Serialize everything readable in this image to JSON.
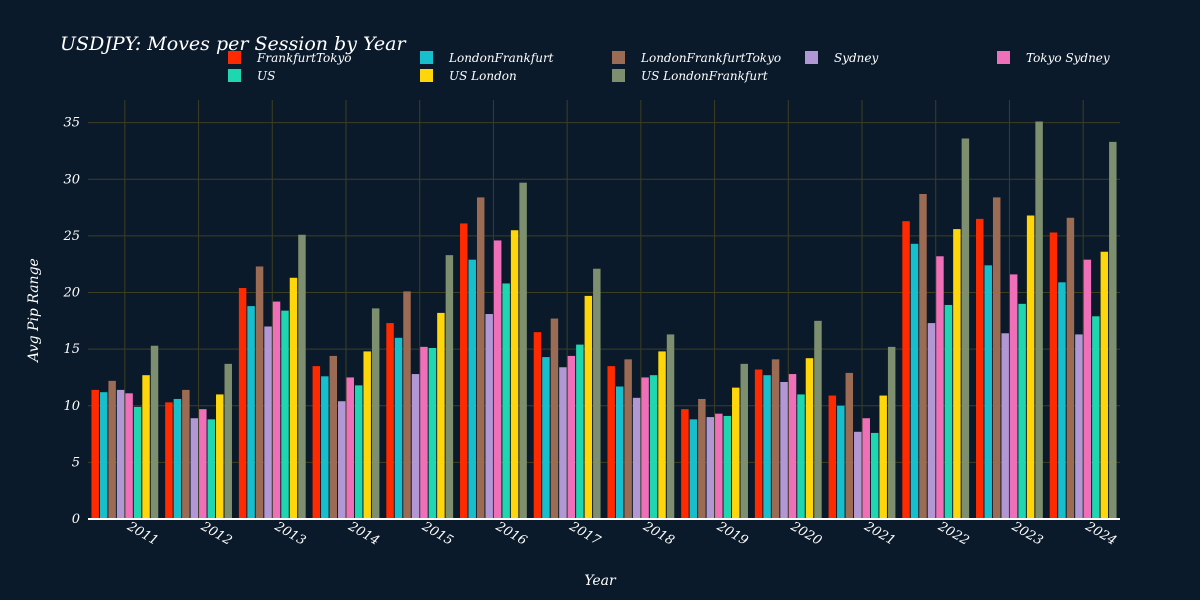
{
  "chart_data": {
    "type": "bar",
    "title": "USDJPY: Moves per Session by Year",
    "xlabel": "Year",
    "ylabel": "Avg Pip Range",
    "ylim": [
      0,
      37
    ],
    "yticks": [
      0,
      5,
      10,
      15,
      20,
      25,
      30,
      35
    ],
    "grid": true,
    "legend_position": "top",
    "categories": [
      "2011",
      "2012",
      "2013",
      "2014",
      "2015",
      "2016",
      "2017",
      "2018",
      "2019",
      "2020",
      "2021",
      "2022",
      "2023",
      "2024"
    ],
    "series": [
      {
        "name": "FrankfurtTokyo",
        "color": "#ff2a00",
        "values": [
          11.4,
          10.3,
          20.4,
          13.5,
          17.3,
          26.1,
          16.5,
          13.5,
          9.7,
          13.2,
          10.9,
          26.3,
          26.5,
          25.3
        ]
      },
      {
        "name": "LondonFrankfurt",
        "color": "#17bfcc",
        "values": [
          11.2,
          10.6,
          18.8,
          12.6,
          16.0,
          22.9,
          14.3,
          11.7,
          8.8,
          12.7,
          10.0,
          24.3,
          22.4,
          20.9
        ]
      },
      {
        "name": "LondonFrankfurtTokyo",
        "color": "#9c6b53",
        "values": [
          12.2,
          11.4,
          22.3,
          14.4,
          20.1,
          28.4,
          17.7,
          14.1,
          10.6,
          14.1,
          12.9,
          28.7,
          28.4,
          26.6
        ]
      },
      {
        "name": "Sydney",
        "color": "#b197d4",
        "values": [
          11.4,
          8.9,
          17.0,
          10.4,
          12.8,
          18.1,
          13.4,
          10.7,
          9.0,
          12.1,
          7.7,
          17.3,
          16.4,
          16.3
        ]
      },
      {
        "name": "Tokyo Sydney",
        "color": "#ef6fb8",
        "values": [
          11.1,
          9.7,
          19.2,
          12.5,
          15.2,
          24.6,
          14.4,
          12.5,
          9.3,
          12.8,
          8.9,
          23.2,
          21.6,
          22.9
        ]
      },
      {
        "name": "US",
        "color": "#1ed6b0",
        "values": [
          9.9,
          8.8,
          18.4,
          11.8,
          15.1,
          20.8,
          15.4,
          12.7,
          9.1,
          11.0,
          7.6,
          18.9,
          19.0,
          17.9
        ]
      },
      {
        "name": "US London",
        "color": "#ffd60a",
        "values": [
          12.7,
          11.0,
          21.3,
          14.8,
          18.2,
          25.5,
          19.7,
          14.8,
          11.6,
          14.2,
          10.9,
          25.6,
          26.8,
          23.6
        ]
      },
      {
        "name": "US LondonFrankfurt",
        "color": "#7d8f6e",
        "values": [
          15.3,
          13.7,
          25.1,
          18.6,
          23.3,
          29.7,
          22.1,
          16.3,
          13.7,
          17.5,
          15.2,
          33.6,
          35.1,
          33.3
        ]
      }
    ]
  }
}
